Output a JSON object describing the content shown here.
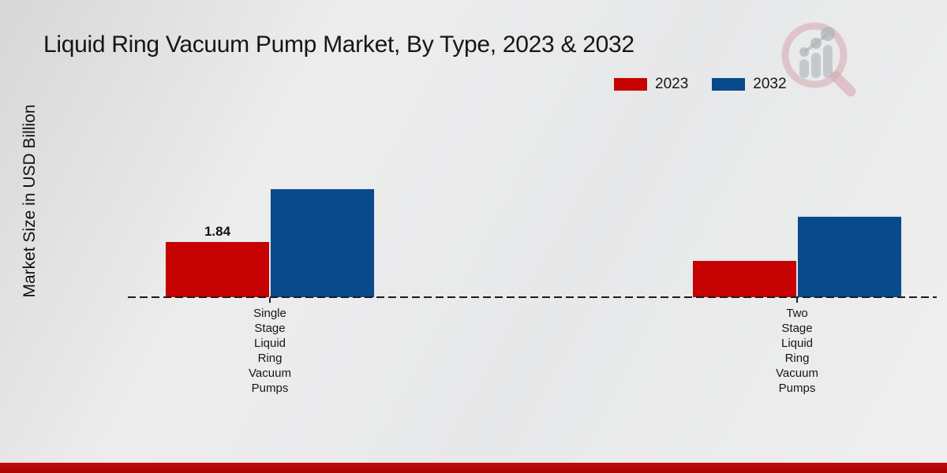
{
  "title": "Liquid Ring Vacuum Pump Market, By Type, 2023 & 2032",
  "y_axis_label": "Market Size in USD Billion",
  "legend": {
    "items": [
      {
        "label": "2023",
        "color": "#c60202"
      },
      {
        "label": "2032",
        "color": "#084a8c"
      }
    ],
    "position": "top-right"
  },
  "colors": {
    "bar_2023": "#c60202",
    "bar_2032": "#084a8c",
    "footer_stripe": "#b30707",
    "background": "#e9eaeb"
  },
  "watermark_icon": "magnifier-bar-chart-logo",
  "chart_data": {
    "type": "bar",
    "categories": [
      "Single Stage Liquid Ring Vacuum Pumps",
      "Two Stage Liquid Ring Vacuum Pumps"
    ],
    "series": [
      {
        "name": "2023",
        "color": "#c60202",
        "values": [
          1.84,
          1.2
        ],
        "labels": [
          "1.84",
          ""
        ]
      },
      {
        "name": "2032",
        "color": "#084a8c",
        "values": [
          3.55,
          2.65
        ],
        "labels": [
          "",
          ""
        ]
      }
    ],
    "title": "Liquid Ring Vacuum Pump Market, By Type, 2023 & 2032",
    "xlabel": "",
    "ylabel": "Market Size in USD Billion",
    "ylim": [
      0,
      4
    ],
    "grid": false,
    "baseline_style": "dashed",
    "legend_position": "top-right",
    "value_labels_shown": [
      "1.84 above 2023 bar of Single Stage group"
    ]
  }
}
